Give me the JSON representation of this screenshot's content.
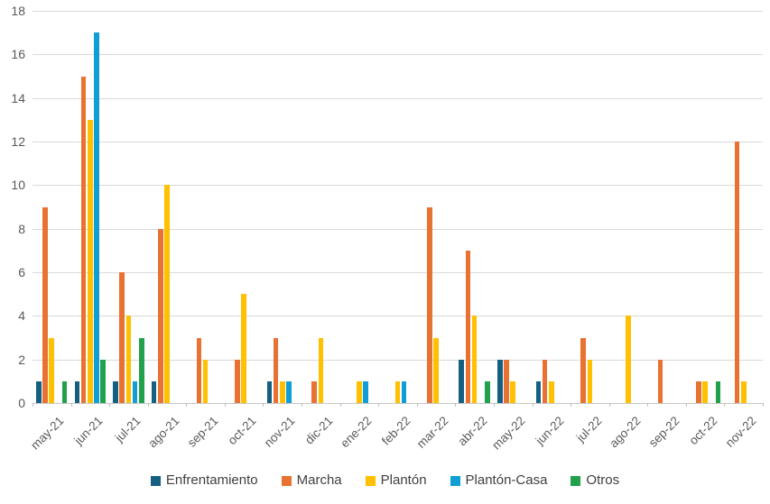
{
  "chart_data": {
    "type": "bar",
    "title": "",
    "xlabel": "",
    "ylabel": "",
    "ylim": [
      0,
      18
    ],
    "ytick_step": 2,
    "grid": true,
    "legend_position": "bottom",
    "categories": [
      "may-21",
      "jun-21",
      "jul-21",
      "ago-21",
      "sep-21",
      "oct-21",
      "nov-21",
      "dic-21",
      "ene-22",
      "feb-22",
      "mar-22",
      "abr-22",
      "may-22",
      "jun-22",
      "jul-22",
      "ago-22",
      "sep-22",
      "oct-22",
      "nov-22"
    ],
    "series": [
      {
        "name": "Enfrentamiento",
        "color": "#156082",
        "values": [
          1,
          1,
          1,
          1,
          0,
          0,
          1,
          0,
          0,
          0,
          0,
          2,
          2,
          1,
          0,
          0,
          0,
          0,
          0
        ]
      },
      {
        "name": "Marcha",
        "color": "#E97132",
        "values": [
          9,
          15,
          6,
          8,
          3,
          2,
          3,
          1,
          0,
          0,
          9,
          7,
          2,
          2,
          3,
          0,
          2,
          1,
          12
        ]
      },
      {
        "name": "Plantón",
        "color": "#FFC000",
        "values": [
          3,
          13,
          4,
          10,
          2,
          5,
          1,
          3,
          1,
          1,
          3,
          4,
          1,
          1,
          2,
          4,
          0,
          1,
          1
        ]
      },
      {
        "name": "Plantón-Casa",
        "color": "#0F9ED5",
        "values": [
          0,
          17,
          1,
          0,
          0,
          0,
          1,
          0,
          1,
          1,
          0,
          0,
          0,
          0,
          0,
          0,
          0,
          0,
          0
        ]
      },
      {
        "name": "Otros",
        "color": "#22A14C",
        "values": [
          1,
          2,
          3,
          0,
          0,
          0,
          0,
          0,
          0,
          0,
          0,
          1,
          0,
          0,
          0,
          0,
          0,
          1,
          0
        ]
      }
    ],
    "colors": {
      "gridline": "#d9d9d9",
      "axis": "#c6c6c6",
      "tick_label": "#595959",
      "legend_text": "#404040"
    }
  }
}
